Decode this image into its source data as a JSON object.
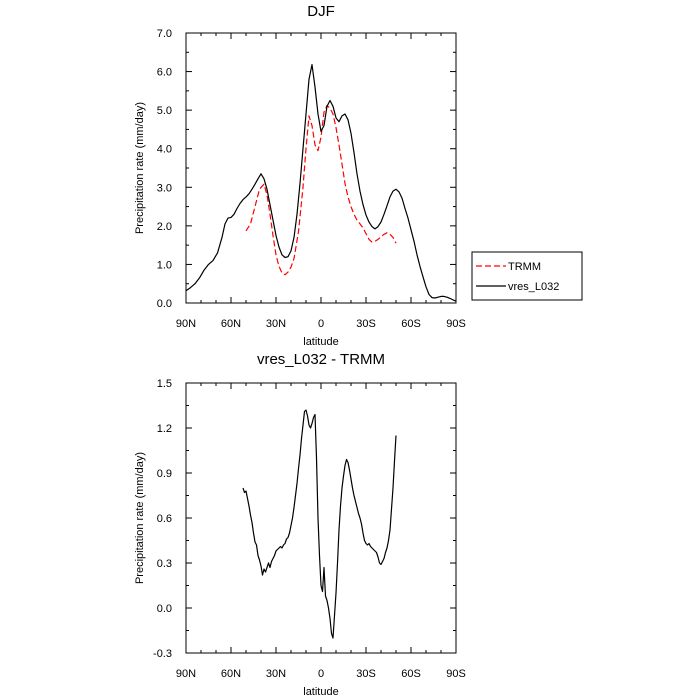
{
  "chart_data": [
    {
      "type": "line",
      "title": "DJF",
      "xlabel": "latitude",
      "ylabel": "Precipitation rate (mm/day)",
      "xlim": [
        90,
        -90
      ],
      "ylim": [
        0,
        7
      ],
      "xticks": [
        90,
        60,
        30,
        0,
        -30,
        -60,
        -90
      ],
      "xtick_labels": [
        "90N",
        "60N",
        "30N",
        "0",
        "30S",
        "60S",
        "90S"
      ],
      "yticks": [
        0,
        1,
        2,
        3,
        4,
        5,
        6,
        7
      ],
      "ytick_labels": [
        "0.0",
        "1.0",
        "2.0",
        "3.0",
        "4.0",
        "5.0",
        "6.0",
        "7.0"
      ],
      "legend_position": "right",
      "series": [
        {
          "name": "TRMM",
          "color": "#ff0000",
          "style": "dashed",
          "x": [
            50,
            47,
            44,
            41,
            38,
            36,
            34,
            32,
            30,
            28,
            26,
            24,
            22,
            20,
            18,
            15,
            12,
            10,
            8,
            6,
            4,
            2,
            0,
            -2,
            -4,
            -6,
            -8,
            -10,
            -12,
            -14,
            -16,
            -18,
            -20,
            -22,
            -24,
            -26,
            -28,
            -30,
            -32,
            -34,
            -36,
            -38,
            -40,
            -42,
            -44,
            -46,
            -48,
            -50
          ],
          "y": [
            1.87,
            2.05,
            2.5,
            2.95,
            3.08,
            2.8,
            2.3,
            1.75,
            1.25,
            0.95,
            0.78,
            0.73,
            0.8,
            0.93,
            1.15,
            1.85,
            3.0,
            4.0,
            4.85,
            4.6,
            4.1,
            3.95,
            4.3,
            4.95,
            5.12,
            5.05,
            4.9,
            4.55,
            4.1,
            3.6,
            3.1,
            2.75,
            2.5,
            2.3,
            2.15,
            2.05,
            1.95,
            1.8,
            1.65,
            1.58,
            1.6,
            1.65,
            1.72,
            1.78,
            1.82,
            1.78,
            1.7,
            1.55
          ]
        },
        {
          "name": "vres_L032",
          "color": "#000000",
          "style": "solid",
          "x": [
            90,
            87,
            84,
            81,
            78,
            75,
            72,
            69,
            66,
            64,
            62,
            60,
            58,
            56,
            54,
            52,
            50,
            48,
            46,
            44,
            42,
            40,
            38,
            36,
            34,
            32,
            30,
            28,
            26,
            24,
            22,
            20,
            18,
            16,
            14,
            12,
            10,
            8,
            6,
            4,
            2,
            0,
            -2,
            -4,
            -6,
            -8,
            -10,
            -12,
            -14,
            -16,
            -18,
            -20,
            -22,
            -24,
            -26,
            -28,
            -30,
            -32,
            -34,
            -36,
            -38,
            -40,
            -42,
            -44,
            -46,
            -48,
            -50,
            -52,
            -54,
            -56,
            -58,
            -60,
            -62,
            -64,
            -66,
            -68,
            -70,
            -72,
            -74,
            -76,
            -78,
            -80,
            -82,
            -84,
            -86,
            -88,
            -90
          ],
          "y": [
            0.32,
            0.4,
            0.5,
            0.65,
            0.85,
            1.0,
            1.1,
            1.3,
            1.7,
            2.05,
            2.2,
            2.22,
            2.3,
            2.45,
            2.58,
            2.68,
            2.75,
            2.83,
            2.95,
            3.08,
            3.22,
            3.35,
            3.22,
            2.95,
            2.55,
            2.15,
            1.75,
            1.45,
            1.25,
            1.18,
            1.2,
            1.35,
            1.7,
            2.3,
            3.1,
            4.0,
            4.9,
            5.8,
            6.18,
            5.6,
            4.9,
            4.45,
            4.6,
            5.1,
            5.25,
            5.1,
            4.8,
            4.7,
            4.85,
            4.9,
            4.75,
            4.4,
            3.9,
            3.35,
            2.9,
            2.55,
            2.28,
            2.1,
            1.98,
            1.92,
            1.98,
            2.1,
            2.3,
            2.52,
            2.75,
            2.9,
            2.95,
            2.88,
            2.72,
            2.45,
            2.2,
            1.9,
            1.6,
            1.25,
            0.95,
            0.68,
            0.42,
            0.22,
            0.14,
            0.13,
            0.15,
            0.17,
            0.17,
            0.15,
            0.12,
            0.08,
            0.05
          ]
        }
      ]
    },
    {
      "type": "line",
      "title": "vres_L032 - TRMM",
      "xlabel": "latitude",
      "ylabel": "Precipitation rate (mm/day)",
      "xlim": [
        90,
        -90
      ],
      "ylim": [
        -0.3,
        1.5
      ],
      "xticks": [
        90,
        60,
        30,
        0,
        -30,
        -60,
        -90
      ],
      "xtick_labels": [
        "90N",
        "60N",
        "30N",
        "0",
        "30S",
        "60S",
        "90S"
      ],
      "yticks": [
        -0.3,
        0,
        0.3,
        0.6,
        0.9,
        1.2,
        1.5
      ],
      "ytick_labels": [
        "-0.3",
        "0.0",
        "0.3",
        "0.6",
        "0.9",
        "1.2",
        "1.5"
      ],
      "series": [
        {
          "name": "vres_L032 - TRMM",
          "color": "#000000",
          "style": "solid",
          "x": [
            52,
            51,
            50,
            49,
            48,
            47,
            46,
            45,
            44,
            43,
            42,
            41,
            40,
            39,
            38,
            37,
            36,
            35,
            34,
            33,
            32,
            31,
            30,
            29,
            28,
            27,
            26,
            25,
            24,
            23,
            22,
            21,
            20,
            19,
            18,
            17,
            16,
            15,
            14,
            13,
            12,
            11,
            10,
            9,
            8,
            7,
            6,
            5,
            4,
            3,
            2,
            1,
            0,
            -1,
            -2,
            -3,
            -4,
            -5,
            -6,
            -7,
            -8,
            -9,
            -10,
            -11,
            -12,
            -13,
            -14,
            -15,
            -16,
            -17,
            -18,
            -19,
            -20,
            -21,
            -22,
            -23,
            -24,
            -25,
            -26,
            -27,
            -28,
            -29,
            -30,
            -31,
            -32,
            -33,
            -34,
            -35,
            -36,
            -37,
            -38,
            -39,
            -40,
            -41,
            -42,
            -43,
            -44,
            -45,
            -46,
            -47,
            -48,
            -49,
            -50
          ],
          "y": [
            0.8,
            0.77,
            0.78,
            0.73,
            0.68,
            0.62,
            0.57,
            0.5,
            0.44,
            0.42,
            0.35,
            0.32,
            0.28,
            0.22,
            0.26,
            0.24,
            0.27,
            0.3,
            0.27,
            0.31,
            0.33,
            0.35,
            0.38,
            0.39,
            0.4,
            0.41,
            0.4,
            0.42,
            0.43,
            0.46,
            0.47,
            0.5,
            0.55,
            0.6,
            0.67,
            0.75,
            0.83,
            0.93,
            1.02,
            1.13,
            1.22,
            1.31,
            1.32,
            1.28,
            1.22,
            1.2,
            1.23,
            1.27,
            1.29,
            1.0,
            0.6,
            0.35,
            0.15,
            0.11,
            0.27,
            0.08,
            0.05,
            0.0,
            -0.07,
            -0.17,
            -0.2,
            -0.05,
            0.1,
            0.3,
            0.52,
            0.68,
            0.8,
            0.88,
            0.95,
            0.99,
            0.97,
            0.92,
            0.86,
            0.8,
            0.75,
            0.71,
            0.67,
            0.63,
            0.6,
            0.56,
            0.5,
            0.45,
            0.43,
            0.42,
            0.43,
            0.41,
            0.4,
            0.39,
            0.38,
            0.37,
            0.34,
            0.3,
            0.29,
            0.31,
            0.33,
            0.37,
            0.4,
            0.45,
            0.52,
            0.66,
            0.8,
            0.98,
            1.15
          ]
        }
      ]
    }
  ]
}
